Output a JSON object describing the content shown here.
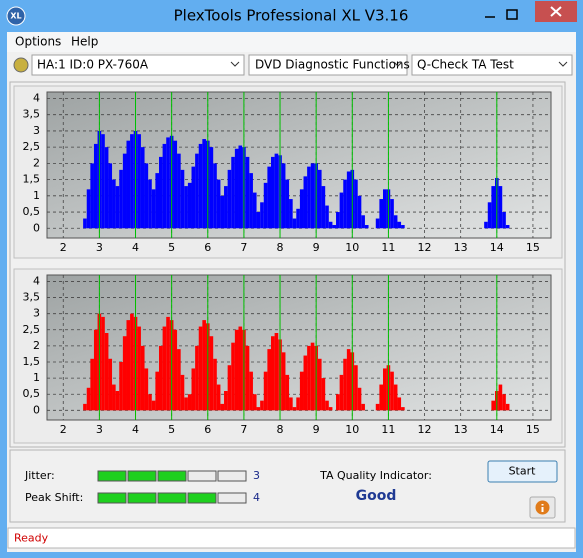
{
  "window": {
    "icon": "XL",
    "title": "PlexTools Professional XL V3.16"
  },
  "menu": [
    "Options",
    "Help"
  ],
  "toolbar": {
    "drive": "HA:1 ID:0  PX-760A",
    "function": "DVD Diagnostic Functions",
    "test": "Q-Check TA Test"
  },
  "charts": [
    {
      "type": "bar",
      "color": "#0000ff",
      "x": [
        2.6,
        2.7,
        2.8,
        2.9,
        3.0,
        3.1,
        3.2,
        3.3,
        3.4,
        3.5,
        3.6,
        3.7,
        3.8,
        3.9,
        4.0,
        4.1,
        4.2,
        4.3,
        4.4,
        4.5,
        4.6,
        4.7,
        4.8,
        4.9,
        5.0,
        5.1,
        5.2,
        5.3,
        5.4,
        5.5,
        5.6,
        5.7,
        5.8,
        5.9,
        6.0,
        6.1,
        6.2,
        6.3,
        6.4,
        6.5,
        6.6,
        6.7,
        6.8,
        6.9,
        7.0,
        7.1,
        7.2,
        7.3,
        7.4,
        7.5,
        7.6,
        7.7,
        7.8,
        7.9,
        8.0,
        8.1,
        8.2,
        8.3,
        8.4,
        8.5,
        8.6,
        8.7,
        8.8,
        8.9,
        9.0,
        9.1,
        9.2,
        9.3,
        9.4,
        9.5,
        9.6,
        9.7,
        9.8,
        9.9,
        10.0,
        10.1,
        10.2,
        10.3,
        10.4,
        10.5,
        10.6,
        10.7,
        10.8,
        10.9,
        11.0,
        11.1,
        11.2,
        11.3,
        11.4,
        13.7,
        13.8,
        13.9,
        14.0,
        14.1,
        14.2,
        14.3
      ],
      "values": [
        0.3,
        1.2,
        2.0,
        2.6,
        3.0,
        2.9,
        2.5,
        2.0,
        1.5,
        1.3,
        1.8,
        2.3,
        2.7,
        2.9,
        3.0,
        2.9,
        2.5,
        2.0,
        1.5,
        1.2,
        1.7,
        2.2,
        2.6,
        2.8,
        2.85,
        2.7,
        2.3,
        1.8,
        1.3,
        1.4,
        1.9,
        2.3,
        2.6,
        2.75,
        2.7,
        2.5,
        2.0,
        1.5,
        1.0,
        1.3,
        1.8,
        2.2,
        2.45,
        2.55,
        2.5,
        2.2,
        1.7,
        1.1,
        0.5,
        0.8,
        1.4,
        1.9,
        2.2,
        2.3,
        2.25,
        2.0,
        1.5,
        0.9,
        0.3,
        0.6,
        1.2,
        1.6,
        1.9,
        2.0,
        2.0,
        1.8,
        1.3,
        0.7,
        0.2,
        0.1,
        0.5,
        1.1,
        1.5,
        1.75,
        1.8,
        1.5,
        1.0,
        0.4,
        0.1,
        0,
        0,
        0.3,
        0.9,
        1.2,
        1.2,
        0.9,
        0.4,
        0.2,
        0.1,
        0.2,
        0.8,
        1.3,
        1.55,
        1.3,
        0.5,
        0.1
      ],
      "xlim": [
        1.55,
        15.5
      ],
      "ylim": [
        -0.3,
        4.2
      ],
      "xticks": [
        2,
        3,
        4,
        5,
        6,
        7,
        8,
        9,
        10,
        11,
        12,
        13,
        14,
        15
      ],
      "yticks": [
        0,
        {
          "value": 0.5,
          "label": "0,5"
        },
        1,
        {
          "value": 1.5,
          "label": "1,5"
        },
        2,
        {
          "value": 2.5,
          "label": "2,5"
        },
        3,
        {
          "value": 3.5,
          "label": "3,5"
        },
        4
      ],
      "grid": true,
      "markers": [
        3,
        4,
        5,
        6,
        7,
        8,
        9,
        10,
        11,
        14
      ],
      "marker_color": "#00c000"
    },
    {
      "type": "bar",
      "color": "#ff0000",
      "x": [
        2.6,
        2.7,
        2.8,
        2.9,
        3.0,
        3.1,
        3.2,
        3.3,
        3.4,
        3.5,
        3.6,
        3.7,
        3.8,
        3.9,
        4.0,
        4.1,
        4.2,
        4.3,
        4.4,
        4.5,
        4.6,
        4.7,
        4.8,
        4.9,
        5.0,
        5.1,
        5.2,
        5.3,
        5.4,
        5.5,
        5.6,
        5.7,
        5.8,
        5.9,
        6.0,
        6.1,
        6.2,
        6.3,
        6.4,
        6.5,
        6.6,
        6.7,
        6.8,
        6.9,
        7.0,
        7.1,
        7.2,
        7.3,
        7.4,
        7.5,
        7.6,
        7.7,
        7.8,
        7.9,
        8.0,
        8.1,
        8.2,
        8.3,
        8.4,
        8.5,
        8.6,
        8.7,
        8.8,
        8.9,
        9.0,
        9.1,
        9.2,
        9.3,
        9.4,
        9.5,
        9.6,
        9.7,
        9.8,
        9.9,
        10.0,
        10.1,
        10.2,
        10.3,
        10.4,
        10.5,
        10.6,
        10.7,
        10.8,
        10.9,
        11.0,
        11.1,
        11.2,
        11.3,
        11.4,
        13.7,
        13.8,
        13.9,
        14.0,
        14.1,
        14.2,
        14.3
      ],
      "values": [
        0.2,
        0.7,
        1.6,
        2.5,
        3.0,
        2.9,
        2.4,
        1.6,
        0.8,
        0.6,
        1.5,
        2.3,
        2.8,
        3.0,
        2.9,
        2.6,
        2.0,
        1.3,
        0.5,
        0.3,
        1.2,
        2.0,
        2.6,
        2.9,
        2.8,
        2.5,
        1.9,
        1.1,
        0.4,
        0.5,
        1.3,
        2.0,
        2.6,
        2.8,
        2.7,
        2.3,
        1.6,
        0.8,
        0.2,
        0.6,
        1.4,
        2.1,
        2.5,
        2.6,
        2.5,
        2.0,
        1.2,
        0.5,
        0.1,
        0.3,
        1.2,
        1.9,
        2.3,
        2.4,
        2.2,
        1.8,
        1.1,
        0.4,
        0.1,
        0.4,
        1.2,
        1.7,
        2.0,
        2.1,
        2.0,
        1.6,
        1.0,
        0.3,
        0.1,
        0,
        0.5,
        1.1,
        1.6,
        1.9,
        1.8,
        1.4,
        0.7,
        0.2,
        0,
        0,
        0,
        0.2,
        0.8,
        1.3,
        1.4,
        1.2,
        0.8,
        0.4,
        0.1,
        0,
        0,
        0.3,
        0.6,
        0.8,
        0.5,
        0.2
      ],
      "xlim": [
        1.55,
        15.5
      ],
      "ylim": [
        -0.3,
        4.2
      ],
      "xticks": [
        2,
        3,
        4,
        5,
        6,
        7,
        8,
        9,
        10,
        11,
        12,
        13,
        14,
        15
      ],
      "yticks": [
        0,
        {
          "value": 0.5,
          "label": "0,5"
        },
        1,
        {
          "value": 1.5,
          "label": "1,5"
        },
        2,
        {
          "value": 2.5,
          "label": "2,5"
        },
        3,
        {
          "value": 3.5,
          "label": "3,5"
        },
        4
      ],
      "grid": true,
      "markers": [
        3,
        4,
        5,
        6,
        7,
        8,
        9,
        10,
        11,
        14
      ],
      "marker_color": "#00c000"
    }
  ],
  "results": {
    "jitter": {
      "label": "Jitter:",
      "value": 3,
      "max": 5
    },
    "peak_shift": {
      "label": "Peak Shift:",
      "value": 4,
      "max": 5
    },
    "quality_label": "TA Quality Indicator:",
    "quality": "Good",
    "start": "Start"
  },
  "status": "Ready"
}
